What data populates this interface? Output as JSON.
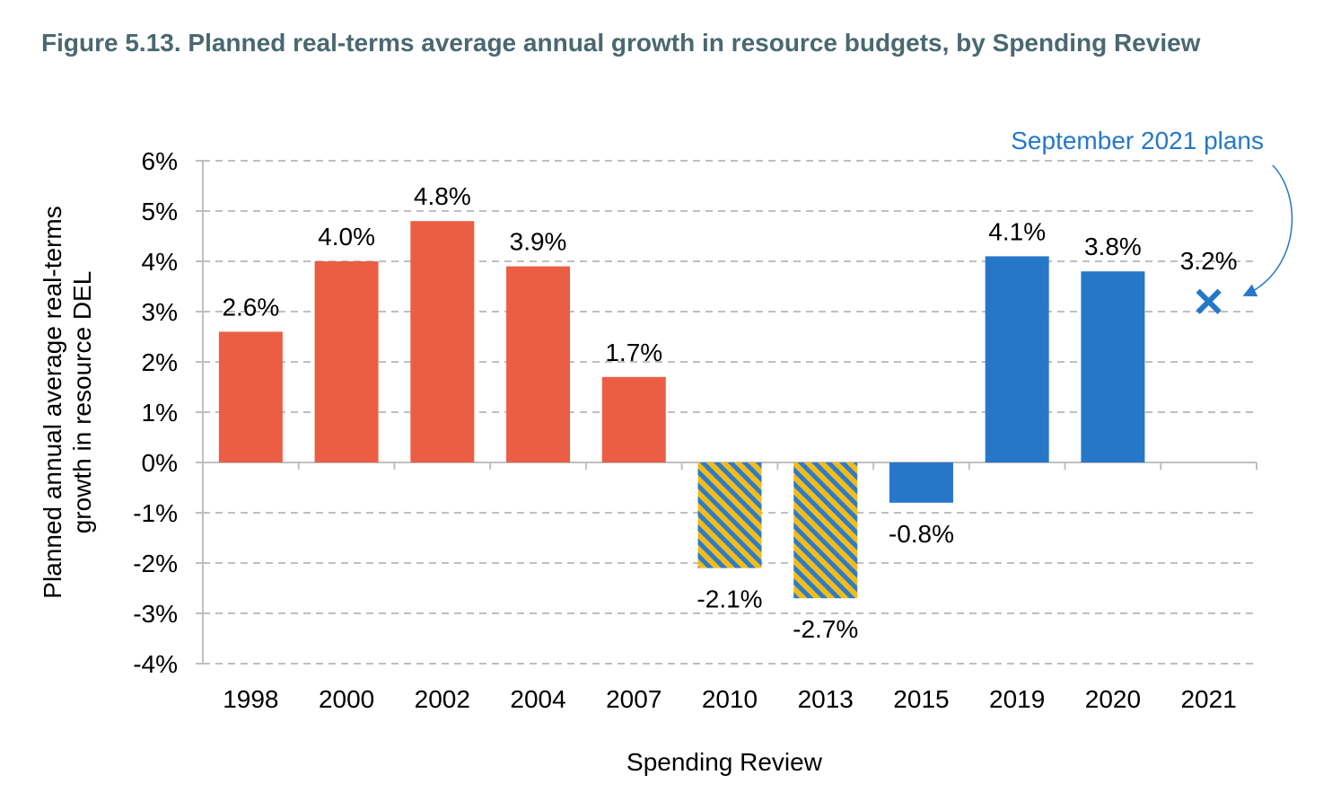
{
  "title": "Figure 5.13. Planned real-terms average annual growth in resource budgets, by Spending Review",
  "colors": {
    "title": "#4a6870",
    "orange": "#eb5e44",
    "blue": "#2777c8",
    "hatch_yellow": "#f3bc19",
    "hatch_blue": "#2e7bc8",
    "grid": "#bfbfbf",
    "axis": "#bfbfbf"
  },
  "chart_data": {
    "type": "bar",
    "title": "Figure 5.13. Planned real-terms average annual growth in resource budgets, by Spending Review",
    "xlabel": "Spending Review",
    "ylabel_lines": [
      "Planned annual average real-terms",
      "growth in resource DEL"
    ],
    "ylim": [
      -4,
      6
    ],
    "y_ticks": [
      6,
      5,
      4,
      3,
      2,
      1,
      0,
      -1,
      -2,
      -3,
      -4
    ],
    "y_tick_labels": [
      "6%",
      "5%",
      "4%",
      "3%",
      "2%",
      "1%",
      "0%",
      "-1%",
      "-2%",
      "-3%",
      "-4%"
    ],
    "grid": true,
    "grid_style": "dashed",
    "categories": [
      "1998",
      "2000",
      "2002",
      "2004",
      "2007",
      "2010",
      "2013",
      "2015",
      "2019",
      "2020",
      "2021"
    ],
    "values": [
      2.6,
      4.0,
      4.8,
      3.9,
      1.7,
      -2.1,
      -2.7,
      -0.8,
      4.1,
      3.8,
      3.2
    ],
    "data_labels": [
      "2.6%",
      "4.0%",
      "4.8%",
      "3.9%",
      "1.7%",
      "-2.1%",
      "-2.7%",
      "-0.8%",
      "4.1%",
      "3.8%",
      "3.2%"
    ],
    "styles": [
      "orange",
      "orange",
      "orange",
      "orange",
      "orange",
      "hatched",
      "hatched",
      "blue",
      "blue",
      "blue",
      "marker-x"
    ],
    "annotation": {
      "text": "September 2021 plans",
      "points_to": "2021"
    }
  }
}
